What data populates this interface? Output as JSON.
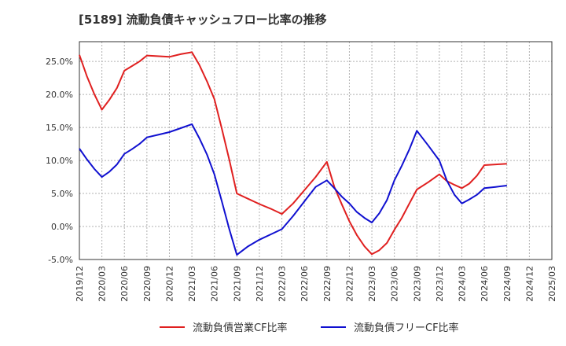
{
  "title": "[5189]  流動負債キャッシュフロー比率の推移",
  "chart_data": {
    "type": "line",
    "x": [
      "2019/12",
      "2020/03",
      "2020/06",
      "2020/09",
      "2020/12",
      "2021/03",
      "2021/06",
      "2021/09",
      "2021/12",
      "2022/03",
      "2022/06",
      "2022/09",
      "2022/12",
      "2023/03",
      "2023/06",
      "2023/09",
      "2023/12",
      "2024/03",
      "2024/06",
      "2024/09",
      "2024/12",
      "2025/03"
    ],
    "y_ticks": [
      "-5.0%",
      "0.0%",
      "5.0%",
      "10.0%",
      "15.0%",
      "20.0%",
      "25.0%"
    ],
    "ylim": [
      -5,
      28
    ],
    "grid": true,
    "legend_position": "bottom",
    "series": [
      {
        "name": "流動負債営業CF比率",
        "color": "#e02020",
        "points": [
          [
            0,
            26.0
          ],
          [
            0.33,
            22.8
          ],
          [
            0.67,
            20.0
          ],
          [
            1,
            17.7
          ],
          [
            1.33,
            19.2
          ],
          [
            1.67,
            21.0
          ],
          [
            2,
            23.6
          ],
          [
            2.33,
            24.3
          ],
          [
            2.67,
            25.0
          ],
          [
            3,
            25.9
          ],
          [
            4,
            25.7
          ],
          [
            4.5,
            26.1
          ],
          [
            5,
            26.4
          ],
          [
            5.33,
            24.5
          ],
          [
            5.67,
            22.0
          ],
          [
            6,
            19.3
          ],
          [
            6.33,
            14.8
          ],
          [
            6.67,
            10.0
          ],
          [
            7,
            5.0
          ],
          [
            7.5,
            4.2
          ],
          [
            8,
            3.4
          ],
          [
            8.5,
            2.7
          ],
          [
            9,
            1.9
          ],
          [
            9.5,
            3.5
          ],
          [
            10,
            5.5
          ],
          [
            10.5,
            7.5
          ],
          [
            11,
            9.8
          ],
          [
            11.33,
            6.0
          ],
          [
            11.67,
            3.3
          ],
          [
            12,
            0.8
          ],
          [
            12.33,
            -1.3
          ],
          [
            12.67,
            -3.0
          ],
          [
            13,
            -4.2
          ],
          [
            13.33,
            -3.6
          ],
          [
            13.67,
            -2.5
          ],
          [
            14,
            -0.5
          ],
          [
            14.33,
            1.3
          ],
          [
            14.67,
            3.5
          ],
          [
            15,
            5.6
          ],
          [
            15.5,
            6.7
          ],
          [
            16,
            7.9
          ],
          [
            16.33,
            6.9
          ],
          [
            16.67,
            6.3
          ],
          [
            17,
            5.8
          ],
          [
            17.33,
            6.5
          ],
          [
            17.67,
            7.7
          ],
          [
            18,
            9.3
          ],
          [
            18.5,
            9.4
          ],
          [
            19,
            9.5
          ]
        ]
      },
      {
        "name": "流動負債フリーCF比率",
        "color": "#1010d0",
        "points": [
          [
            0,
            11.8
          ],
          [
            0.33,
            10.2
          ],
          [
            0.67,
            8.7
          ],
          [
            1,
            7.5
          ],
          [
            1.33,
            8.3
          ],
          [
            1.67,
            9.4
          ],
          [
            2,
            11.0
          ],
          [
            2.33,
            11.7
          ],
          [
            2.67,
            12.5
          ],
          [
            3,
            13.5
          ],
          [
            3.5,
            13.9
          ],
          [
            4,
            14.3
          ],
          [
            4.5,
            14.9
          ],
          [
            5,
            15.5
          ],
          [
            5.33,
            13.4
          ],
          [
            5.67,
            10.9
          ],
          [
            6,
            7.9
          ],
          [
            6.33,
            3.8
          ],
          [
            6.67,
            -0.5
          ],
          [
            7,
            -4.3
          ],
          [
            7.5,
            -3.0
          ],
          [
            8,
            -2.0
          ],
          [
            8.5,
            -1.2
          ],
          [
            9,
            -0.4
          ],
          [
            9.5,
            1.6
          ],
          [
            10,
            3.8
          ],
          [
            10.5,
            6.0
          ],
          [
            11,
            7.0
          ],
          [
            11.33,
            5.8
          ],
          [
            11.67,
            4.5
          ],
          [
            12,
            3.5
          ],
          [
            12.33,
            2.2
          ],
          [
            12.67,
            1.3
          ],
          [
            13,
            0.6
          ],
          [
            13.33,
            2.0
          ],
          [
            13.67,
            4.0
          ],
          [
            14,
            7.0
          ],
          [
            14.33,
            9.2
          ],
          [
            14.67,
            11.7
          ],
          [
            15,
            14.5
          ],
          [
            15.5,
            12.3
          ],
          [
            16,
            10.0
          ],
          [
            16.33,
            7.0
          ],
          [
            16.67,
            4.8
          ],
          [
            17,
            3.5
          ],
          [
            17.33,
            4.1
          ],
          [
            17.67,
            4.8
          ],
          [
            18,
            5.8
          ],
          [
            18.5,
            6.0
          ],
          [
            19,
            6.2
          ]
        ]
      }
    ]
  }
}
